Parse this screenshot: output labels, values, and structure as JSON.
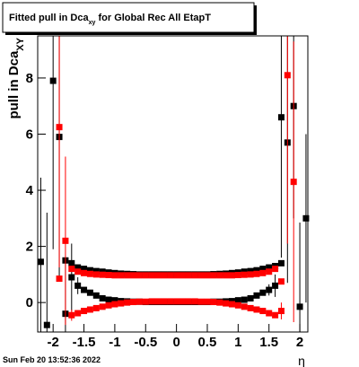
{
  "chart_data": {
    "type": "scatter",
    "title": "Fitted pull in Dca",
    "title_sub": "xy",
    "title_rest": " for Global Rec All EtapT",
    "y_label": "pull in Dca",
    "y_label_sub": "XY",
    "x_label": "η",
    "timestamp": "Sun Feb 20 13:52:36 2022",
    "xlim": [
      -2.25,
      2.13
    ],
    "ylim": [
      -1.05,
      9.5
    ],
    "xticks": [
      -2,
      -1.5,
      -1,
      -0.5,
      0,
      0.5,
      1,
      1.5,
      2
    ],
    "yticks": [
      0,
      2,
      4,
      6,
      8
    ],
    "x": [
      -2.2,
      -2.1,
      -2,
      -1.9,
      -1.8,
      -1.7,
      -1.6,
      -1.5,
      -1.4,
      -1.3,
      -1.2,
      -1.1,
      -1,
      -0.9,
      -0.8,
      -0.7,
      -0.6,
      -0.5,
      -0.4,
      -0.3,
      -0.2,
      -0.1,
      0,
      0.1,
      0.2,
      0.3,
      0.4,
      0.5,
      0.6,
      0.7,
      0.8,
      0.9,
      1,
      1.1,
      1.2,
      1.3,
      1.4,
      1.5,
      1.6,
      1.7,
      1.8,
      1.9,
      2,
      2.1
    ],
    "series": [
      {
        "color": "#000000",
        "values": [
          1.45,
          -0.8,
          7.9,
          5.9,
          -0.4,
          0.9,
          0.6,
          0.45,
          0.35,
          0.25,
          0.15,
          0.1,
          0.08,
          0.05,
          0.04,
          0.03,
          0.03,
          0.02,
          0.02,
          0.02,
          0.02,
          0.02,
          0.02,
          0.02,
          0.02,
          0.02,
          0.02,
          0.02,
          0.03,
          0.03,
          0.04,
          0.05,
          0.08,
          0.1,
          0.15,
          0.25,
          0.35,
          0.45,
          0.6,
          6.6,
          5.7,
          7.0,
          -0.15,
          3.0
        ],
        "errors": [
          3,
          4,
          6,
          5,
          2,
          1.2,
          0.3,
          0.1,
          0.05,
          0.03,
          0.02,
          0.02,
          0.02,
          0.02,
          0.02,
          0.02,
          0.02,
          0.02,
          0.02,
          0.02,
          0.02,
          0.02,
          0.02,
          0.02,
          0.02,
          0.02,
          0.02,
          0.02,
          0.02,
          0.02,
          0.02,
          0.02,
          0.02,
          0.02,
          0.03,
          0.05,
          0.1,
          0.2,
          0.4,
          5,
          5,
          4,
          3,
          3
        ]
      },
      {
        "color": "#000000",
        "values": [
          null,
          null,
          null,
          null,
          1.5,
          1.4,
          1.25,
          1.2,
          1.15,
          1.12,
          1.1,
          1.07,
          1.05,
          1.03,
          1.02,
          1.01,
          1,
          1,
          1,
          1,
          1,
          1,
          1,
          1,
          1,
          1,
          1,
          1,
          1.01,
          1.02,
          1.03,
          1.05,
          1.07,
          1.1,
          1.12,
          1.15,
          1.2,
          1.25,
          1.3,
          1.4,
          null,
          null,
          null,
          null
        ]
      },
      {
        "color": "#ff0000",
        "values": [
          null,
          null,
          null,
          6.25,
          2.2,
          -0.45,
          -0.38,
          -0.3,
          -0.25,
          -0.2,
          -0.15,
          -0.1,
          -0.06,
          -0.03,
          0,
          0.02,
          0.03,
          0.03,
          0.04,
          0.04,
          0.04,
          0.04,
          0.04,
          0.04,
          0.04,
          0.04,
          0.03,
          0.03,
          0.02,
          0,
          -0.03,
          -0.06,
          -0.1,
          -0.15,
          -0.2,
          -0.25,
          -0.3,
          -0.38,
          -0.45,
          -0.3,
          8.1,
          4.3,
          null,
          null
        ],
        "errors": [
          null,
          null,
          null,
          5,
          3,
          0.2,
          0.1,
          0.05,
          0.03,
          0.02,
          0.02,
          0.02,
          0.02,
          0.02,
          0.02,
          0.02,
          0.02,
          0.02,
          0.02,
          0.02,
          0.02,
          0.02,
          0.02,
          0.02,
          0.02,
          0.02,
          0.02,
          0.02,
          0.02,
          0.02,
          0.02,
          0.02,
          0.02,
          0.02,
          0.02,
          0.02,
          0.03,
          0.05,
          0.1,
          0.3,
          6,
          5,
          null,
          null
        ]
      },
      {
        "color": "#ff0000",
        "values": [
          null,
          null,
          null,
          0.85,
          null,
          1.2,
          1.1,
          1.05,
          1.02,
          1,
          0.99,
          0.98,
          0.97,
          0.97,
          0.97,
          0.97,
          0.97,
          0.97,
          0.97,
          0.97,
          0.97,
          0.97,
          0.97,
          0.97,
          0.97,
          0.97,
          0.97,
          0.97,
          0.97,
          0.97,
          0.97,
          0.97,
          0.98,
          0.99,
          1,
          1.02,
          1.05,
          1.1,
          1.2,
          0.75,
          null,
          null,
          null,
          null
        ]
      }
    ]
  }
}
